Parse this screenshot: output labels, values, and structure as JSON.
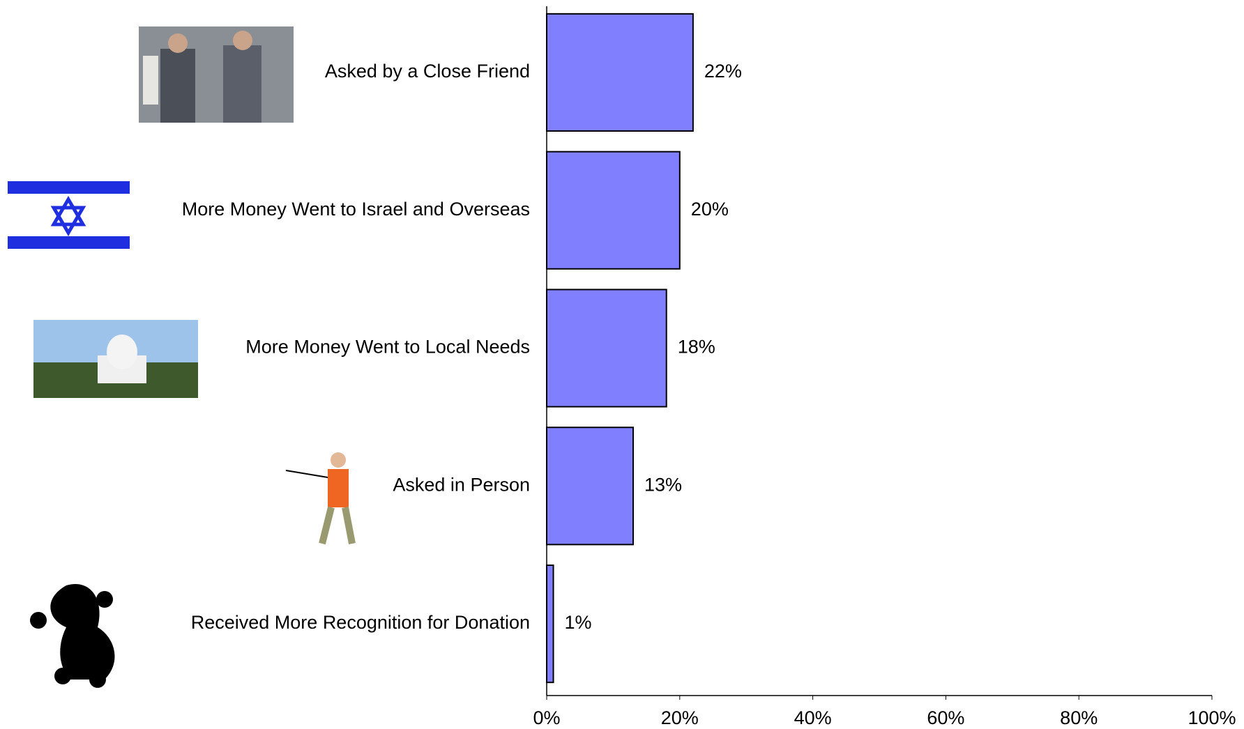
{
  "chart_data": {
    "type": "bar",
    "orientation": "horizontal",
    "categories": [
      "Asked by a Close Friend",
      "More Money Went to Israel and Overseas",
      "More Money Went to Local Needs",
      "Asked in Person",
      "Received More Recognition for Donation"
    ],
    "values": [
      22,
      20,
      18,
      13,
      1
    ],
    "value_labels": [
      "22%",
      "20%",
      "18%",
      "13%",
      "1%"
    ],
    "color": "#8080ff",
    "xlim": [
      0,
      100
    ],
    "xticks": [
      {
        "value": 0,
        "label": "0%"
      },
      {
        "value": 20,
        "label": "20%"
      },
      {
        "value": 40,
        "label": "40%"
      },
      {
        "value": 60,
        "label": "60%"
      },
      {
        "value": 80,
        "label": "80%"
      },
      {
        "value": 100,
        "label": "100%"
      }
    ],
    "grid": false
  }
}
